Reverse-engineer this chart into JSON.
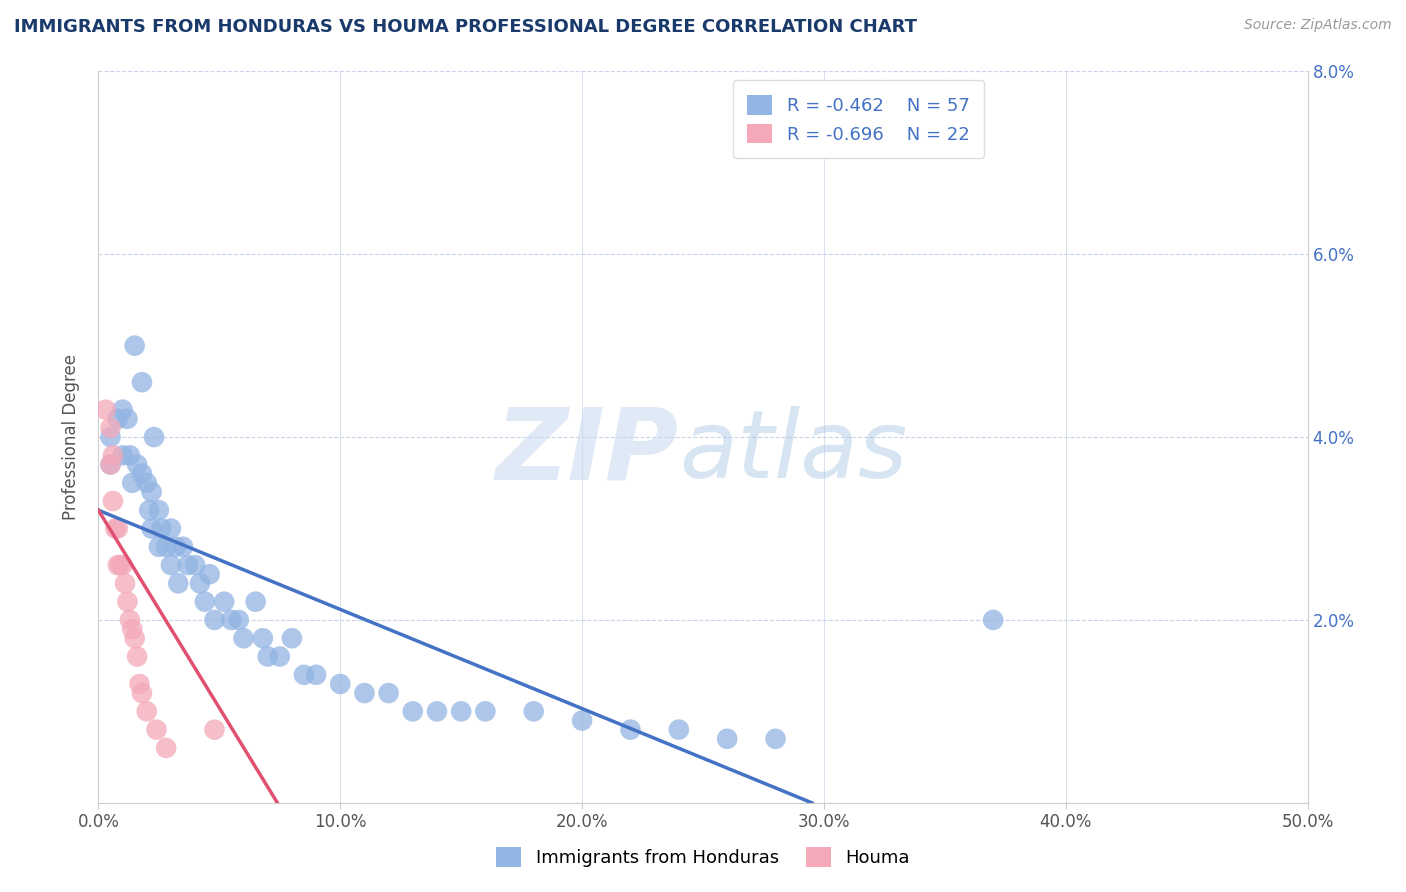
{
  "title": "IMMIGRANTS FROM HONDURAS VS HOUMA PROFESSIONAL DEGREE CORRELATION CHART",
  "source_text": "Source: ZipAtlas.com",
  "ylabel": "Professional Degree",
  "xlabel": "",
  "xlim": [
    0.0,
    0.5
  ],
  "ylim": [
    0.0,
    0.08
  ],
  "yticks": [
    0.0,
    0.02,
    0.04,
    0.06,
    0.08
  ],
  "ytick_labels_right": [
    "",
    "2.0%",
    "4.0%",
    "6.0%",
    "8.0%"
  ],
  "xticks": [
    0.0,
    0.1,
    0.2,
    0.3,
    0.4,
    0.5
  ],
  "xtick_labels": [
    "0.0%",
    "10.0%",
    "20.0%",
    "30.0%",
    "40.0%",
    "50.0%"
  ],
  "blue_R": -0.462,
  "blue_N": 57,
  "pink_R": -0.696,
  "pink_N": 22,
  "blue_color": "#92b4e3",
  "pink_color": "#f4a8b8",
  "blue_line_color": "#4472c4",
  "pink_line_color": "#e05070",
  "title_color": "#1a3a6b",
  "legend_label_blue": "Immigrants from Honduras",
  "legend_label_pink": "Houma",
  "blue_line_x": [
    0.0,
    0.295
  ],
  "blue_line_y": [
    0.032,
    0.0
  ],
  "pink_line_x": [
    0.0,
    0.074
  ],
  "pink_line_y": [
    0.032,
    0.0
  ],
  "blue_scatter_x": [
    0.005,
    0.005,
    0.008,
    0.01,
    0.01,
    0.012,
    0.013,
    0.014,
    0.015,
    0.016,
    0.018,
    0.018,
    0.02,
    0.021,
    0.022,
    0.022,
    0.023,
    0.025,
    0.025,
    0.026,
    0.028,
    0.03,
    0.03,
    0.032,
    0.033,
    0.035,
    0.037,
    0.04,
    0.042,
    0.044,
    0.046,
    0.048,
    0.052,
    0.055,
    0.058,
    0.06,
    0.065,
    0.068,
    0.07,
    0.075,
    0.08,
    0.085,
    0.09,
    0.1,
    0.11,
    0.12,
    0.13,
    0.14,
    0.15,
    0.16,
    0.18,
    0.2,
    0.22,
    0.24,
    0.26,
    0.28,
    0.37
  ],
  "blue_scatter_y": [
    0.04,
    0.037,
    0.042,
    0.043,
    0.038,
    0.042,
    0.038,
    0.035,
    0.05,
    0.037,
    0.036,
    0.046,
    0.035,
    0.032,
    0.034,
    0.03,
    0.04,
    0.032,
    0.028,
    0.03,
    0.028,
    0.03,
    0.026,
    0.028,
    0.024,
    0.028,
    0.026,
    0.026,
    0.024,
    0.022,
    0.025,
    0.02,
    0.022,
    0.02,
    0.02,
    0.018,
    0.022,
    0.018,
    0.016,
    0.016,
    0.018,
    0.014,
    0.014,
    0.013,
    0.012,
    0.012,
    0.01,
    0.01,
    0.01,
    0.01,
    0.01,
    0.009,
    0.008,
    0.008,
    0.007,
    0.007,
    0.02
  ],
  "pink_scatter_x": [
    0.003,
    0.005,
    0.005,
    0.006,
    0.006,
    0.007,
    0.008,
    0.008,
    0.009,
    0.01,
    0.011,
    0.012,
    0.013,
    0.014,
    0.015,
    0.016,
    0.017,
    0.018,
    0.02,
    0.024,
    0.028,
    0.048
  ],
  "pink_scatter_y": [
    0.043,
    0.041,
    0.037,
    0.038,
    0.033,
    0.03,
    0.03,
    0.026,
    0.026,
    0.026,
    0.024,
    0.022,
    0.02,
    0.019,
    0.018,
    0.016,
    0.013,
    0.012,
    0.01,
    0.008,
    0.006,
    0.008
  ]
}
